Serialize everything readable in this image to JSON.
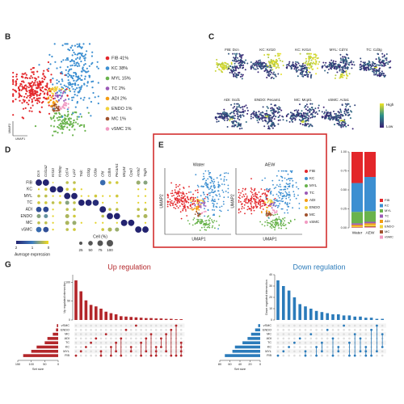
{
  "panels": {
    "B": {
      "letter": "B",
      "x_label": "UMAP1",
      "y_label": "UMAP2",
      "legend": [
        {
          "label": "FIB 41%",
          "color": "#e3262a"
        },
        {
          "label": "KC 38%",
          "color": "#3c8fd1"
        },
        {
          "label": "MYL 15%",
          "color": "#69b34c"
        },
        {
          "label": "TC 2%",
          "color": "#9b59b6"
        },
        {
          "label": "ADI 2%",
          "color": "#f39c12"
        },
        {
          "label": "ENDO 1%",
          "color": "#f2d23a"
        },
        {
          "label": "MC 1%",
          "color": "#a0522d"
        },
        {
          "label": "vSMC 1%",
          "color": "#f19ac2"
        }
      ]
    },
    "C": {
      "letter": "C",
      "plots": [
        "FIB: Dcn",
        "KC: Krt10",
        "KC: Krt14",
        "MYL: Cd74",
        "TC: Cd3g",
        "ADI: Scd1",
        "ENDO: Pecam1",
        "MC: Mcpt1",
        "vSMC: Acta1"
      ],
      "scale_high": "High",
      "scale_low": "Low",
      "scale_colors": [
        "#3b1f74",
        "#2a8f8a",
        "#f0e424"
      ]
    },
    "D": {
      "letter": "D",
      "genes": [
        "Dcn",
        "Col1a2",
        "Krt10",
        "Krtdap",
        "Cd74",
        "Lyz2",
        "Trdc",
        "Cd3g",
        "Cd3e",
        "Cfd",
        "Cdh5",
        "Pecam1",
        "Mcpt4",
        "Cpa3",
        "Acta2",
        "Tagln"
      ],
      "cell_types": [
        "FIB",
        "KC",
        "MYL",
        "TC",
        "ADI",
        "ENDO",
        "MC",
        "vSMC"
      ],
      "expression": [
        [
          2.2,
          2.1,
          0.1,
          0,
          0.3,
          0.3,
          0,
          0,
          0,
          1.2,
          0.2,
          0.2,
          0,
          0,
          0.5,
          0.6
        ],
        [
          0.1,
          0.2,
          2.3,
          2.2,
          0.2,
          0.2,
          0.1,
          0,
          0,
          0,
          0,
          0,
          0,
          0,
          0.1,
          0.1
        ],
        [
          0.3,
          0.3,
          0.1,
          0.1,
          2.2,
          2.1,
          0.1,
          0.1,
          0.2,
          0.1,
          0.1,
          0.2,
          0,
          0,
          0.1,
          0.1
        ],
        [
          0.2,
          0.2,
          0.3,
          0.2,
          0.6,
          0.3,
          2.1,
          2.2,
          1.9,
          0.1,
          0,
          0.1,
          0,
          0,
          0.1,
          0.1
        ],
        [
          1.5,
          1.6,
          0.1,
          0,
          0.3,
          0.3,
          0,
          0,
          0,
          2.3,
          0.3,
          0.3,
          0,
          0,
          0.3,
          0.3
        ],
        [
          0.6,
          0.8,
          0.1,
          0,
          0.4,
          0.2,
          0,
          0,
          0,
          0.3,
          2.2,
          2.1,
          0,
          0,
          0.3,
          0.4
        ],
        [
          0.3,
          0.3,
          0.1,
          0,
          0.4,
          0.5,
          0.1,
          0,
          0.1,
          0.1,
          0,
          0.1,
          2.4,
          2.3,
          0,
          0.1
        ],
        [
          1.2,
          1.5,
          0.1,
          0,
          0.3,
          0.2,
          0,
          0,
          0,
          0.2,
          0.4,
          0.5,
          0,
          0,
          2.3,
          2.2
        ]
      ],
      "percent": [
        [
          98,
          97,
          5,
          0,
          20,
          20,
          0,
          0,
          0,
          70,
          20,
          20,
          0,
          0,
          40,
          40
        ],
        [
          8,
          20,
          99,
          96,
          20,
          20,
          8,
          0,
          0,
          0,
          0,
          0,
          0,
          0,
          8,
          8
        ],
        [
          20,
          20,
          8,
          8,
          97,
          95,
          8,
          8,
          20,
          8,
          8,
          20,
          0,
          0,
          8,
          8
        ],
        [
          20,
          20,
          20,
          20,
          40,
          20,
          92,
          95,
          90,
          8,
          0,
          8,
          0,
          0,
          8,
          8
        ],
        [
          70,
          72,
          8,
          0,
          20,
          20,
          0,
          0,
          0,
          98,
          20,
          20,
          0,
          0,
          20,
          20
        ],
        [
          40,
          40,
          8,
          0,
          40,
          20,
          0,
          0,
          0,
          20,
          96,
          94,
          0,
          0,
          20,
          40
        ],
        [
          20,
          20,
          8,
          0,
          40,
          40,
          8,
          0,
          8,
          8,
          0,
          8,
          97,
          95,
          0,
          8
        ],
        [
          70,
          72,
          8,
          0,
          20,
          20,
          0,
          0,
          0,
          20,
          40,
          40,
          0,
          0,
          98,
          97
        ]
      ],
      "expression_title": "Average expression",
      "expression_ticks": [
        2,
        1,
        0
      ],
      "expression_colors": [
        "#f5dc1c",
        "#3e7dbf",
        "#232370"
      ],
      "percent_title": "Cell (%)",
      "percent_ticks": [
        25,
        50,
        75,
        100
      ]
    },
    "E": {
      "letter": "E",
      "plots": [
        "Water",
        "AEW"
      ],
      "x_label": "UMAP1",
      "y_label": "UMAP2",
      "legend": [
        "FIB",
        "KC",
        "MYL",
        "TC",
        "ADI",
        "ENDO",
        "MC",
        "vSMC"
      ]
    },
    "F": {
      "letter": "F",
      "type": "bar",
      "stacked": true,
      "categories": [
        "Water",
        "AEW"
      ],
      "ylim": [
        0,
        1
      ],
      "yticks": [
        {
          "value": 0,
          "label": "0.00"
        },
        {
          "value": 0.25,
          "label": "0.25"
        },
        {
          "value": 0.5,
          "label": "0.50"
        },
        {
          "value": 0.75,
          "label": "0.75"
        },
        {
          "value": 1,
          "label": "1.00"
        }
      ],
      "series": [
        {
          "name": "FIB",
          "color": "#e3262a",
          "values": [
            0.41,
            0.33
          ]
        },
        {
          "name": "KC",
          "color": "#3c8fd1",
          "values": [
            0.38,
            0.45
          ]
        },
        {
          "name": "MYL",
          "color": "#69b34c",
          "values": [
            0.15,
            0.14
          ]
        },
        {
          "name": "TC",
          "color": "#9b59b6",
          "values": [
            0.02,
            0.02
          ]
        },
        {
          "name": "ADI",
          "color": "#f39c12",
          "values": [
            0.02,
            0.02
          ]
        },
        {
          "name": "ENDO",
          "color": "#f2d23a",
          "values": [
            0.01,
            0.02
          ]
        },
        {
          "name": "MC",
          "color": "#a0522d",
          "values": [
            0.005,
            0.01
          ]
        },
        {
          "name": "vSMC",
          "color": "#f19ac2",
          "values": [
            0.005,
            0.01
          ]
        }
      ]
    },
    "G": {
      "letter": "G",
      "sets": [
        "vSMC",
        "ENDO",
        "MC",
        "ADI",
        "TC",
        "KC",
        "MYL",
        "FIB"
      ],
      "up": {
        "title": "Up regulation",
        "y_label": "Up regulated intersection",
        "x_label": "Set size",
        "color": "#b3262a",
        "set_sizes": [
          5,
          8,
          20,
          40,
          50,
          80,
          100,
          130
        ],
        "xlim": [
          150,
          0
        ],
        "xticks": [
          150,
          100,
          50,
          0
        ],
        "ylim": [
          0,
          120
        ],
        "yticks": [
          0,
          50,
          100
        ],
        "intersections": [
          {
            "size": 105,
            "sets": [
              7
            ]
          },
          {
            "size": 76,
            "sets": [
              6
            ]
          },
          {
            "size": 52,
            "sets": [
              5
            ]
          },
          {
            "size": 40,
            "sets": [
              4
            ]
          },
          {
            "size": 36,
            "sets": [
              3
            ]
          },
          {
            "size": 30,
            "sets": [
              6,
              7
            ]
          },
          {
            "size": 22,
            "sets": [
              2
            ]
          },
          {
            "size": 18,
            "sets": [
              5,
              7
            ]
          },
          {
            "size": 15,
            "sets": [
              4,
              6
            ]
          },
          {
            "size": 10,
            "sets": [
              3,
              7
            ]
          },
          {
            "size": 9,
            "sets": [
              1
            ]
          },
          {
            "size": 8,
            "sets": [
              5,
              6
            ]
          },
          {
            "size": 7,
            "sets": [
              0
            ]
          },
          {
            "size": 6,
            "sets": [
              4,
              7
            ]
          },
          {
            "size": 5,
            "sets": [
              3,
              6
            ]
          },
          {
            "size": 5,
            "sets": [
              2,
              7
            ]
          },
          {
            "size": 4,
            "sets": [
              5,
              6,
              7
            ]
          },
          {
            "size": 4,
            "sets": [
              3,
              5
            ]
          },
          {
            "size": 3,
            "sets": [
              2,
              6
            ]
          },
          {
            "size": 3,
            "sets": [
              1,
              7
            ]
          },
          {
            "size": 2,
            "sets": [
              0,
              7
            ]
          },
          {
            "size": 2,
            "sets": [
              4,
              5,
              6,
              7
            ]
          }
        ]
      },
      "down": {
        "title": "Down regulation",
        "y_label": "Down regulated intersection",
        "x_label": "Set size",
        "color": "#2b7bba",
        "set_sizes": [
          4,
          10,
          18,
          25,
          35,
          50,
          55,
          70
        ],
        "xlim": [
          80,
          0
        ],
        "xticks": [
          80,
          60,
          40,
          20,
          0
        ],
        "ylim": [
          0,
          40
        ],
        "yticks": [
          0,
          10,
          20,
          30,
          40
        ],
        "intersections": [
          {
            "size": 35,
            "sets": [
              7
            ]
          },
          {
            "size": 30,
            "sets": [
              6
            ]
          },
          {
            "size": 26,
            "sets": [
              5
            ]
          },
          {
            "size": 20,
            "sets": [
              4
            ]
          },
          {
            "size": 14,
            "sets": [
              3
            ]
          },
          {
            "size": 12,
            "sets": [
              6,
              7
            ]
          },
          {
            "size": 10,
            "sets": [
              2
            ]
          },
          {
            "size": 8,
            "sets": [
              5,
              7
            ]
          },
          {
            "size": 7,
            "sets": [
              4,
              6
            ]
          },
          {
            "size": 6,
            "sets": [
              1
            ]
          },
          {
            "size": 5,
            "sets": [
              3,
              7
            ]
          },
          {
            "size": 5,
            "sets": [
              5,
              6
            ]
          },
          {
            "size": 4,
            "sets": [
              0
            ]
          },
          {
            "size": 4,
            "sets": [
              4,
              7
            ]
          },
          {
            "size": 3,
            "sets": [
              2,
              7
            ]
          },
          {
            "size": 3,
            "sets": [
              3,
              6
            ]
          },
          {
            "size": 2,
            "sets": [
              5,
              6,
              7
            ]
          },
          {
            "size": 2,
            "sets": [
              1,
              7
            ]
          },
          {
            "size": 1,
            "sets": [
              0,
              6
            ]
          },
          {
            "size": 1,
            "sets": [
              2,
              5
            ]
          }
        ]
      }
    }
  }
}
